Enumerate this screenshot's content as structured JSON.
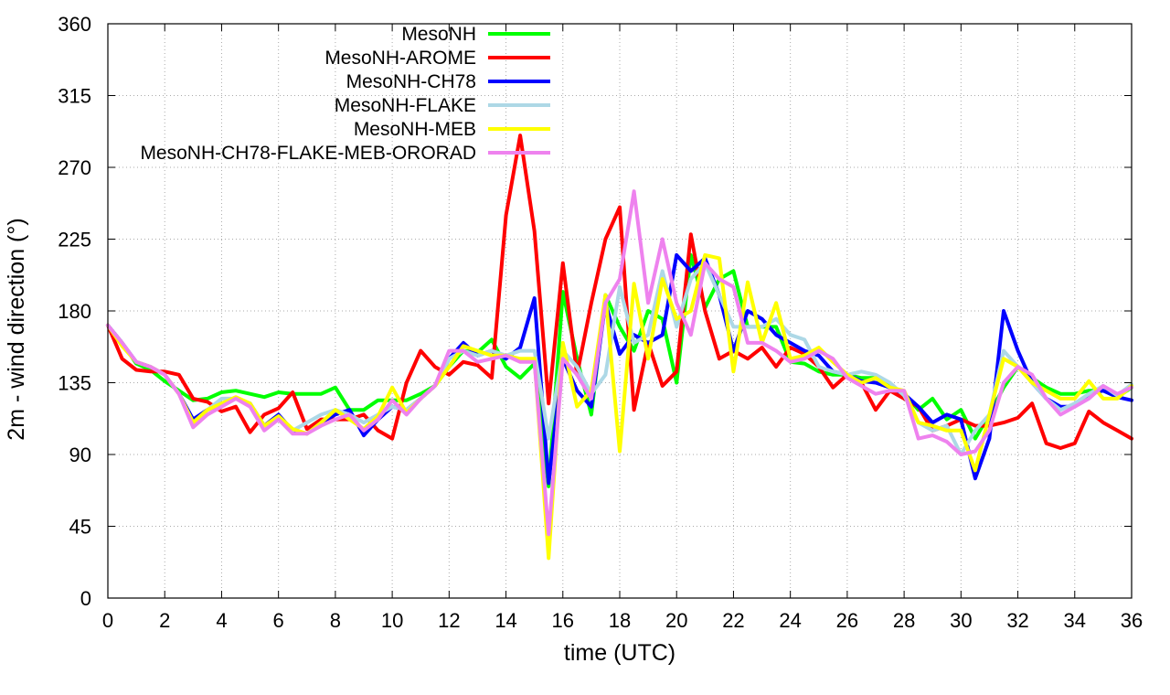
{
  "chart_data": {
    "type": "line",
    "xlabel": "time (UTC)",
    "ylabel": "2m - wind direction (°)",
    "xlim": [
      0,
      36
    ],
    "ylim": [
      0,
      360
    ],
    "xticks": [
      0,
      2,
      4,
      6,
      8,
      10,
      12,
      14,
      16,
      18,
      20,
      22,
      24,
      26,
      28,
      30,
      32,
      34,
      36
    ],
    "yticks": [
      0,
      45,
      90,
      135,
      180,
      225,
      270,
      315,
      360
    ],
    "grid": true,
    "legend_position": "top-center",
    "x": [
      0,
      0.5,
      1,
      1.5,
      2,
      2.5,
      3,
      3.5,
      4,
      4.5,
      5,
      5.5,
      6,
      6.5,
      7,
      7.5,
      8,
      8.5,
      9,
      9.5,
      10,
      10.5,
      11,
      11.5,
      12,
      12.5,
      13,
      13.5,
      14,
      14.5,
      15,
      15.5,
      16,
      16.5,
      17,
      17.5,
      18,
      18.5,
      19,
      19.5,
      20,
      20.5,
      21,
      21.5,
      22,
      22.5,
      23,
      23.5,
      24,
      24.5,
      25,
      25.5,
      26,
      26.5,
      27,
      27.5,
      28,
      28.5,
      29,
      29.5,
      30,
      30.5,
      31,
      31.5,
      32,
      32.5,
      33,
      33.5,
      34,
      34.5,
      35,
      35.5,
      36
    ],
    "series": [
      {
        "name": "MesoNH",
        "color": "#00ff00",
        "values": [
          171,
          160,
          147,
          143,
          136,
          130,
          124,
          125,
          129,
          130,
          128,
          126,
          129,
          128,
          128,
          128,
          132,
          118,
          118,
          124,
          124,
          124,
          128,
          133,
          145,
          155,
          154,
          162,
          145,
          138,
          147,
          70,
          192,
          150,
          115,
          190,
          170,
          155,
          180,
          175,
          135,
          215,
          182,
          200,
          205,
          170,
          170,
          170,
          148,
          147,
          142,
          140,
          140,
          138,
          138,
          133,
          128,
          118,
          125,
          112,
          118,
          100,
          115,
          132,
          145,
          138,
          132,
          128,
          128,
          130,
          130,
          126,
          132
        ]
      },
      {
        "name": "MesoNH-AROME",
        "color": "#ff0000",
        "values": [
          171,
          150,
          143,
          142,
          142,
          140,
          125,
          123,
          117,
          120,
          104,
          115,
          119,
          129,
          106,
          112,
          112,
          112,
          115,
          105,
          100,
          135,
          155,
          145,
          140,
          148,
          146,
          138,
          240,
          290,
          230,
          122,
          210,
          140,
          185,
          225,
          245,
          118,
          160,
          133,
          142,
          228,
          180,
          150,
          155,
          150,
          157,
          145,
          157,
          153,
          145,
          132,
          140,
          135,
          118,
          130,
          125,
          120,
          105,
          108,
          112,
          108,
          108,
          110,
          113,
          122,
          97,
          94,
          97,
          117,
          110,
          105,
          100
        ]
      },
      {
        "name": "MesoNH-CH78",
        "color": "#0000ff",
        "values": [
          171,
          160,
          148,
          145,
          140,
          128,
          112,
          118,
          122,
          125,
          122,
          108,
          115,
          105,
          103,
          110,
          115,
          118,
          102,
          112,
          120,
          118,
          125,
          133,
          150,
          160,
          152,
          155,
          150,
          157,
          188,
          72,
          150,
          130,
          120,
          185,
          153,
          165,
          160,
          165,
          215,
          205,
          213,
          190,
          155,
          180,
          175,
          165,
          160,
          155,
          152,
          142,
          140,
          136,
          135,
          132,
          128,
          120,
          110,
          115,
          112,
          75,
          100,
          180,
          155,
          135,
          125,
          120,
          120,
          128,
          130,
          126,
          124
        ]
      },
      {
        "name": "MesoNH-FLAKE",
        "color": "#add8e6",
        "values": [
          171,
          160,
          148,
          145,
          140,
          128,
          110,
          118,
          125,
          125,
          122,
          108,
          113,
          105,
          110,
          115,
          118,
          115,
          110,
          115,
          120,
          118,
          125,
          133,
          150,
          155,
          152,
          155,
          152,
          155,
          155,
          100,
          155,
          145,
          128,
          140,
          195,
          160,
          165,
          205,
          170,
          200,
          210,
          190,
          170,
          170,
          170,
          175,
          165,
          162,
          145,
          142,
          140,
          142,
          140,
          135,
          127,
          110,
          105,
          108,
          90,
          105,
          115,
          155,
          145,
          135,
          125,
          118,
          122,
          128,
          133,
          127,
          134
        ]
      },
      {
        "name": "MesoNH-MEB",
        "color": "#ffff00",
        "values": [
          171,
          158,
          148,
          145,
          140,
          128,
          110,
          118,
          122,
          126,
          122,
          108,
          114,
          106,
          103,
          110,
          118,
          112,
          106,
          114,
          132,
          116,
          125,
          133,
          145,
          158,
          155,
          152,
          152,
          150,
          150,
          25,
          160,
          120,
          130,
          190,
          92,
          197,
          150,
          200,
          175,
          180,
          215,
          213,
          142,
          198,
          160,
          185,
          150,
          152,
          157,
          148,
          140,
          135,
          138,
          132,
          130,
          110,
          108,
          105,
          105,
          80,
          115,
          150,
          145,
          135,
          130,
          125,
          125,
          136,
          125,
          125,
          133
        ]
      },
      {
        "name": "MesoNH-CH78-FLAKE-MEB-ORORAD",
        "color": "#ee82ee",
        "values": [
          171,
          160,
          148,
          145,
          140,
          128,
          107,
          115,
          120,
          125,
          120,
          105,
          112,
          103,
          103,
          108,
          112,
          115,
          105,
          112,
          124,
          115,
          125,
          133,
          155,
          155,
          148,
          150,
          152,
          148,
          148,
          40,
          150,
          140,
          125,
          185,
          200,
          255,
          185,
          225,
          185,
          165,
          210,
          200,
          195,
          160,
          160,
          155,
          148,
          150,
          155,
          150,
          138,
          133,
          128,
          130,
          130,
          100,
          102,
          98,
          90,
          92,
          105,
          135,
          145,
          140,
          125,
          115,
          120,
          125,
          133,
          128,
          132
        ]
      }
    ]
  }
}
